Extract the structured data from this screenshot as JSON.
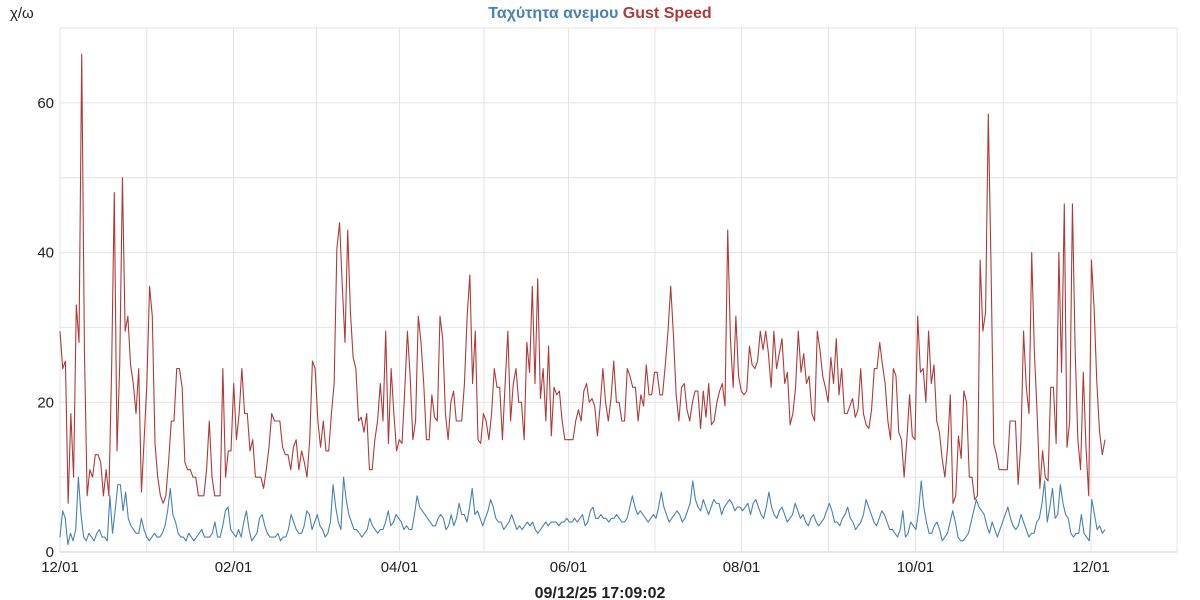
{
  "chart_data": {
    "type": "line",
    "title_parts": [
      {
        "text": "Ταχύτητα ανεμου",
        "color": "#4682b4"
      },
      {
        "text": "Gust Speed",
        "color": "#b03a3a"
      }
    ],
    "ylabel": "χ/ω",
    "footer": "09/12/25 17:09:02",
    "ylim": [
      0,
      70
    ],
    "y_ticks": [
      0,
      20,
      40,
      60
    ],
    "x_ticks": [
      "12/01",
      "02/01",
      "04/01",
      "06/01",
      "08/01",
      "10/01",
      "12/01"
    ],
    "grid": true,
    "series": [
      {
        "name": "Ταχύτητα ανεμου",
        "color": "#4682b4",
        "values": [
          2,
          5.5,
          4.5,
          1,
          2.5,
          1.5,
          3,
          10,
          5,
          2,
          1.5,
          2.5,
          2,
          1.5,
          2.5,
          3,
          2,
          2,
          1.5,
          7.5,
          2.5,
          5.5,
          9,
          9,
          5.5,
          8,
          4.5,
          3.5,
          3,
          2.5,
          2.5,
          4.5,
          3,
          2,
          1.5,
          2,
          2.5,
          2,
          2,
          2.5,
          3.5,
          5.5,
          8.5,
          5,
          4,
          2.5,
          2,
          2,
          1.5,
          2.5,
          2,
          1.5,
          2,
          2.5,
          3,
          2,
          2,
          2,
          2.5,
          4,
          2,
          2,
          3.5,
          5.5,
          6,
          3,
          2.5,
          2,
          3,
          2,
          4,
          5.5,
          3,
          1.5,
          2,
          2.5,
          4.5,
          5,
          3.5,
          2.5,
          2,
          2,
          2,
          2.5,
          1.5,
          2,
          2,
          3,
          5,
          4,
          3,
          2.5,
          2.5,
          3.5,
          5.5,
          5,
          3,
          4,
          5,
          3.5,
          3,
          2,
          2.5,
          4,
          9,
          6,
          4,
          3,
          10,
          7,
          5,
          4,
          3,
          3,
          2.5,
          2,
          2.5,
          3,
          4.5,
          3.5,
          3,
          2.5,
          3,
          3,
          4,
          5.5,
          3.5,
          4,
          5,
          4.5,
          4,
          3,
          3.5,
          3,
          3,
          5,
          7.5,
          6,
          5.5,
          5,
          4.5,
          4,
          3.5,
          3.5,
          4.5,
          5,
          4.5,
          3,
          3.5,
          5,
          3.5,
          4.5,
          6.5,
          5,
          5,
          4,
          6,
          8.5,
          5,
          5.5,
          4.5,
          3.5,
          4.5,
          5.5,
          7,
          6,
          4.5,
          4,
          4,
          3,
          3.5,
          4,
          5,
          4,
          3,
          3.5,
          3,
          3.5,
          4,
          3.5,
          4,
          3,
          2.5,
          3,
          3.5,
          4,
          3.5,
          4,
          4,
          4,
          3.5,
          4,
          4,
          4.5,
          4,
          4,
          4.5,
          4,
          4.5,
          5,
          3.5,
          4,
          5.5,
          6,
          4.5,
          4.5,
          5,
          4.5,
          4.5,
          4,
          4.5,
          4.5,
          5,
          4.5,
          4,
          4,
          4.5,
          6,
          7.5,
          6,
          5,
          5.5,
          5,
          4.5,
          4,
          4.5,
          5,
          4.5,
          6,
          8,
          6,
          5,
          4,
          4.5,
          5,
          5.5,
          5,
          4,
          4.5,
          5.5,
          6.5,
          9.5,
          7,
          6,
          5.5,
          7,
          6,
          5,
          6,
          7,
          6.5,
          6.5,
          5,
          6,
          6.5,
          7,
          6.5,
          5.5,
          6,
          6,
          5.5,
          6,
          6.5,
          5,
          6.5,
          7,
          6,
          5,
          4.5,
          6,
          8,
          6,
          5,
          4.5,
          5.5,
          6,
          5,
          4,
          4.5,
          5,
          6.5,
          5.5,
          4.5,
          5,
          4,
          3.5,
          4.5,
          5,
          4,
          3.5,
          4,
          4.5,
          5.5,
          6.5,
          5.5,
          4,
          4,
          3.5,
          4.5,
          5,
          6,
          4.5,
          4,
          3,
          3.5,
          4,
          5,
          7,
          6,
          5,
          4,
          3.5,
          4.5,
          5.5,
          5,
          4,
          3,
          3,
          2.5,
          2,
          3,
          5.5,
          2,
          2.5,
          4,
          3.5,
          3,
          5.5,
          9.5,
          6,
          4,
          2.5,
          2.5,
          3.5,
          4,
          3,
          1.5,
          2,
          2.5,
          4,
          5.5,
          4,
          2,
          1.5,
          1.5,
          2,
          2.5,
          4,
          5.5,
          7,
          6,
          5.5,
          5,
          3.5,
          2.5,
          4,
          3,
          2,
          3,
          4,
          5,
          6,
          4.5,
          3.5,
          3,
          3.5,
          5,
          4,
          3,
          2,
          2.5,
          2.5,
          4,
          4.5,
          6.5,
          9.5,
          4,
          6,
          8.5,
          4.5,
          5,
          9,
          6.5,
          5,
          4.5,
          2.5,
          2,
          2.5,
          2.5,
          5,
          2.5,
          2,
          1.5,
          7,
          5,
          3,
          3.5,
          2.5,
          3
        ]
      },
      {
        "name": "Gust Speed",
        "color": "#b03a3a",
        "values": [
          29.5,
          24.5,
          25.5,
          6.5,
          18.5,
          10,
          33,
          28,
          66.5,
          27,
          7.5,
          11,
          10,
          13,
          13,
          12,
          7.5,
          11,
          7.5,
          24,
          48,
          13.5,
          25,
          50,
          29.5,
          31.5,
          25,
          22.5,
          18.5,
          24.5,
          8,
          15,
          22.5,
          35.5,
          31.5,
          14.5,
          10,
          7.5,
          6.5,
          7.5,
          12,
          17.5,
          17.5,
          24.5,
          24.5,
          22,
          12,
          11,
          11,
          10,
          10,
          7.5,
          7.5,
          7.5,
          11,
          17.5,
          10,
          7.5,
          7.5,
          7.5,
          24.5,
          10,
          13.5,
          13.5,
          22.5,
          15,
          18.5,
          24.5,
          18.5,
          18.5,
          13.5,
          15,
          10,
          10,
          10,
          8.5,
          11,
          14,
          18.5,
          17.5,
          17.5,
          17.5,
          14,
          13,
          13,
          11,
          14,
          15,
          11,
          13.5,
          12,
          10,
          15,
          25.5,
          24.5,
          17.5,
          14,
          17.5,
          13.5,
          13.5,
          18.5,
          22.5,
          40.5,
          44,
          35.5,
          28,
          43,
          32,
          26,
          24.5,
          17.5,
          18,
          16,
          18.5,
          11,
          11,
          15,
          17.5,
          22.5,
          17.5,
          29.5,
          14.5,
          24.5,
          18.5,
          13.5,
          15,
          14.5,
          21.5,
          29.5,
          23.5,
          15,
          17.5,
          31.5,
          28,
          22.5,
          15,
          15,
          21,
          18,
          17.5,
          31.5,
          28.5,
          18.5,
          15,
          20,
          21.5,
          17.5,
          17.5,
          17.5,
          22.5,
          31.5,
          37,
          22.5,
          29.5,
          15,
          14.5,
          18.5,
          17.5,
          15,
          18.5,
          24.5,
          22,
          22,
          15,
          22.5,
          29.5,
          17.5,
          22.5,
          24.5,
          20,
          20,
          15,
          28,
          24,
          35.5,
          22.5,
          36.5,
          20.5,
          24.5,
          17.5,
          27.5,
          15.5,
          22,
          21,
          21.5,
          17.5,
          15,
          15,
          15,
          15,
          17.5,
          19,
          17.5,
          21.5,
          22.5,
          20,
          20.5,
          19.5,
          15.5,
          19.5,
          24.5,
          20,
          17.5,
          20.5,
          25.5,
          20,
          20,
          17.5,
          17.5,
          24.5,
          23.5,
          22,
          22,
          17.5,
          21,
          19.5,
          25,
          21,
          21,
          24,
          24,
          21,
          21,
          25,
          29.5,
          35.5,
          29,
          21,
          17.5,
          22,
          22.5,
          19,
          17.5,
          20,
          21.5,
          21.5,
          16.5,
          21.5,
          18,
          22.5,
          17,
          17.5,
          20,
          21.5,
          22.5,
          19.5,
          43,
          28.5,
          22,
          31.5,
          23.5,
          21.5,
          21,
          21.5,
          27.5,
          25,
          24.5,
          25.5,
          29.5,
          27,
          29.5,
          26.5,
          22,
          29.5,
          24.5,
          26.5,
          28.5,
          22.5,
          24,
          17,
          18.5,
          22,
          29.5,
          24,
          26.5,
          22.5,
          23.5,
          18.5,
          17.5,
          29.5,
          27,
          23.5,
          22,
          20,
          26,
          22.5,
          28.5,
          21,
          24.5,
          18.5,
          18.5,
          19.5,
          20.5,
          18,
          19,
          24.5,
          18.5,
          17,
          16.5,
          19,
          24.5,
          24.5,
          28,
          25,
          22.5,
          17.5,
          15,
          24.5,
          23.5,
          16,
          15,
          10,
          15,
          21,
          15.5,
          15,
          31.5,
          24,
          24.5,
          20,
          29.5,
          22.5,
          25,
          17.5,
          16,
          12.5,
          10,
          14,
          21,
          6.5,
          7.5,
          15.5,
          12.5,
          21.5,
          20,
          10,
          10,
          7,
          7.5,
          39,
          29.5,
          32,
          58.5,
          38.5,
          14.5,
          13,
          11,
          11,
          11,
          11,
          17.5,
          17.5,
          17.5,
          9,
          14.5,
          29.5,
          22,
          18.5,
          40,
          26.5,
          18.5,
          8.5,
          13.5,
          10,
          9.5,
          22,
          22,
          14.5,
          40,
          24,
          46.5,
          14,
          17.5,
          46.5,
          27,
          15,
          11,
          24,
          14,
          7.5,
          39,
          32.5,
          22.5,
          16,
          13,
          15
        ]
      }
    ]
  }
}
